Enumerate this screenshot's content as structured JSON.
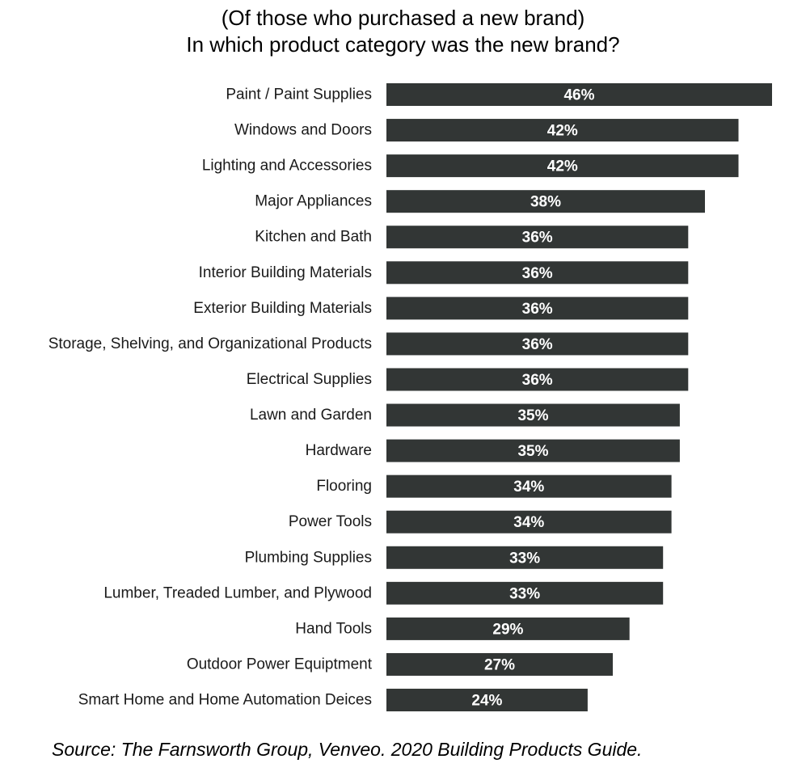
{
  "title_lines": [
    "(Of those who purchased a new brand)",
    "In which product category was the new brand?"
  ],
  "source": "Source:  The Farnsworth Group, Venveo.  2020 Building Products Guide.",
  "colors": {
    "bar": "#323635",
    "value_label": "#ffffff"
  },
  "chart_data": {
    "type": "bar",
    "orientation": "horizontal",
    "title": "(Of those who purchased a new brand) In which product category was the new brand?",
    "xlabel": "",
    "ylabel": "",
    "grid": false,
    "legend": "none",
    "xlim": [
      0,
      46
    ],
    "value_suffix": "%",
    "categories": [
      "Paint / Paint Supplies",
      "Windows and Doors",
      "Lighting and Accessories",
      "Major Appliances",
      "Kitchen and Bath",
      "Interior Building Materials",
      "Exterior Building Materials",
      "Storage, Shelving, and Organizational Products",
      "Electrical Supplies",
      "Lawn and Garden",
      "Hardware",
      "Flooring",
      "Power Tools",
      "Plumbing Supplies",
      "Lumber, Treaded Lumber, and Plywood",
      "Hand Tools",
      "Outdoor Power Equiptment",
      "Smart Home and Home Automation Deices"
    ],
    "values": [
      46,
      42,
      42,
      38,
      36,
      36,
      36,
      36,
      36,
      35,
      35,
      34,
      34,
      33,
      33,
      29,
      27,
      24
    ],
    "labels": [
      "46%",
      "42%",
      "42%",
      "38%",
      "36%",
      "36%",
      "36%",
      "36%",
      "36%",
      "35%",
      "35%",
      "34%",
      "34%",
      "33%",
      "33%",
      "29%",
      "27%",
      "24%"
    ]
  }
}
